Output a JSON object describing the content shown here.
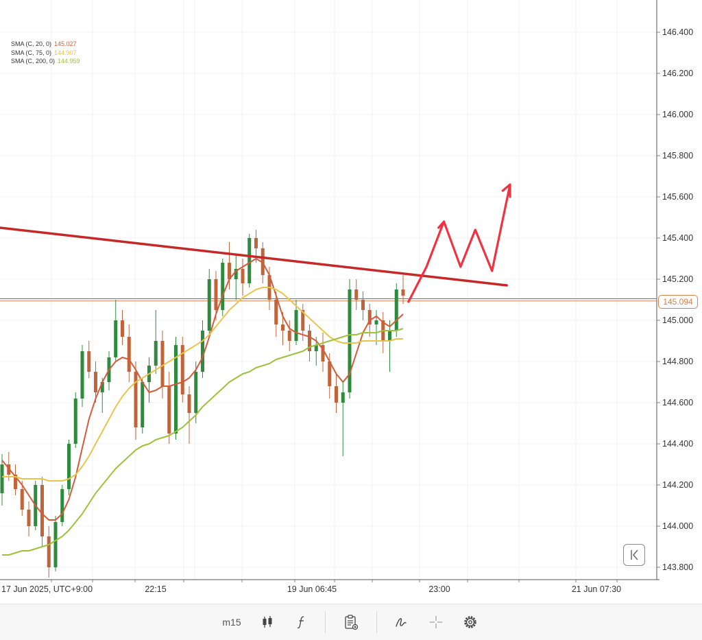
{
  "legend": [
    {
      "label": "SMA (C, 20, 0)",
      "value": "145.027",
      "color": "#d65a3a"
    },
    {
      "label": "SMA (C, 75, 0)",
      "value": "144.907",
      "color": "#e8c54a"
    },
    {
      "label": "SMA (C, 200, 0)",
      "value": "144.959",
      "color": "#9dc23a"
    }
  ],
  "current_price": "145.094",
  "toolbar": {
    "timeframe": "m15",
    "icons": [
      "candlestick-icon",
      "function-icon",
      "clipboard-icon",
      "draw-icon",
      "crosshair-icon",
      "gear-icon"
    ]
  },
  "chart_data": {
    "type": "candlestick",
    "y_axis": {
      "range": [
        143.74,
        146.55
      ],
      "ticks": [
        "143.800",
        "144.000",
        "144.200",
        "144.400",
        "144.600",
        "144.800",
        "145.000",
        "145.200",
        "145.400",
        "145.600",
        "145.800",
        "146.000",
        "146.200",
        "146.400"
      ]
    },
    "x_axis": {
      "tick_labels": [
        "17 Jun 2025, UTC+9:00",
        "22:15",
        "19 Jun 06:45",
        "23:00",
        "21 Jun 07:30"
      ]
    },
    "colors": {
      "up": "#2e8b3e",
      "down": "#c0643a",
      "trendline": "#c62828",
      "projection": "#ef3340",
      "hline_green": "#3c9a46",
      "hline_orange": "#d3804a"
    },
    "hlines": [
      145.105,
      145.094
    ],
    "candles": [
      [
        144.16,
        144.35,
        144.1,
        144.3
      ],
      [
        144.3,
        144.36,
        144.22,
        144.25
      ],
      [
        144.25,
        144.3,
        144.15,
        144.18
      ],
      [
        144.18,
        144.22,
        144.05,
        144.08
      ],
      [
        144.08,
        144.12,
        143.95,
        144.0
      ],
      [
        144.0,
        144.22,
        143.98,
        144.2
      ],
      [
        144.2,
        144.24,
        143.9,
        143.95
      ],
      [
        143.95,
        144.0,
        143.75,
        143.8
      ],
      [
        143.8,
        144.05,
        143.78,
        144.02
      ],
      [
        144.02,
        144.2,
        144.0,
        144.18
      ],
      [
        144.18,
        144.42,
        144.15,
        144.4
      ],
      [
        144.4,
        144.65,
        144.38,
        144.62
      ],
      [
        144.62,
        144.88,
        144.58,
        144.85
      ],
      [
        144.85,
        144.9,
        144.72,
        144.75
      ],
      [
        144.75,
        144.8,
        144.6,
        144.65
      ],
      [
        144.65,
        144.72,
        144.55,
        144.7
      ],
      [
        144.7,
        144.85,
        144.66,
        144.82
      ],
      [
        144.82,
        145.1,
        144.8,
        145.0
      ],
      [
        145.0,
        145.05,
        144.88,
        144.92
      ],
      [
        144.92,
        144.98,
        144.7,
        144.75
      ],
      [
        144.75,
        144.8,
        144.42,
        144.48
      ],
      [
        144.48,
        144.72,
        144.45,
        144.7
      ],
      [
        144.7,
        144.82,
        144.6,
        144.78
      ],
      [
        144.78,
        145.05,
        144.74,
        144.9
      ],
      [
        144.9,
        144.95,
        144.62,
        144.68
      ],
      [
        144.68,
        144.75,
        144.4,
        144.45
      ],
      [
        144.45,
        144.92,
        144.42,
        144.88
      ],
      [
        144.88,
        144.92,
        144.6,
        144.64
      ],
      [
        144.64,
        144.68,
        144.4,
        144.55
      ],
      [
        144.55,
        144.8,
        144.5,
        144.75
      ],
      [
        144.75,
        145.0,
        144.72,
        144.95
      ],
      [
        144.95,
        145.25,
        144.92,
        145.2
      ],
      [
        145.2,
        145.24,
        145.0,
        145.05
      ],
      [
        145.05,
        145.3,
        145.02,
        145.28
      ],
      [
        145.28,
        145.38,
        145.15,
        145.2
      ],
      [
        145.2,
        145.32,
        145.1,
        145.25
      ],
      [
        145.25,
        145.3,
        145.12,
        145.18
      ],
      [
        145.18,
        145.42,
        145.16,
        145.4
      ],
      [
        145.4,
        145.44,
        145.28,
        145.35
      ],
      [
        145.35,
        145.38,
        145.18,
        145.22
      ],
      [
        145.22,
        145.26,
        145.05,
        145.1
      ],
      [
        145.1,
        145.14,
        144.92,
        144.98
      ],
      [
        144.98,
        145.04,
        144.88,
        144.95
      ],
      [
        144.95,
        145.0,
        144.85,
        144.9
      ],
      [
        144.9,
        145.1,
        144.88,
        145.05
      ],
      [
        145.05,
        145.08,
        144.9,
        144.95
      ],
      [
        144.95,
        144.98,
        144.8,
        144.85
      ],
      [
        144.85,
        144.92,
        144.78,
        144.88
      ],
      [
        144.88,
        144.94,
        144.75,
        144.8
      ],
      [
        144.8,
        144.84,
        144.62,
        144.68
      ],
      [
        144.68,
        144.74,
        144.55,
        144.6
      ],
      [
        144.6,
        144.7,
        144.34,
        144.65
      ],
      [
        144.65,
        145.2,
        144.62,
        145.15
      ],
      [
        145.15,
        145.2,
        145.05,
        145.1
      ],
      [
        145.1,
        145.14,
        145.0,
        145.05
      ],
      [
        145.05,
        145.08,
        144.92,
        144.98
      ],
      [
        144.98,
        145.05,
        144.88,
        145.0
      ],
      [
        145.0,
        145.04,
        144.84,
        144.9
      ],
      [
        144.9,
        145.0,
        144.75,
        144.95
      ],
      [
        144.95,
        145.18,
        144.92,
        145.15
      ],
      [
        145.15,
        145.22,
        145.08,
        145.12
      ]
    ],
    "sma": [
      {
        "name": "SMA (C, 20, 0)",
        "values": [
          144.32,
          144.28,
          144.24,
          144.2,
          144.15,
          144.1,
          144.06,
          144.03,
          144.03,
          144.06,
          144.13,
          144.24,
          144.38,
          144.52,
          144.62,
          144.7,
          144.76,
          144.8,
          144.82,
          144.81,
          144.76,
          144.7,
          144.65,
          144.66,
          144.68,
          144.68,
          144.69,
          144.7,
          144.72,
          144.76,
          144.82,
          144.92,
          145.03,
          145.12,
          145.2,
          145.24,
          145.26,
          145.28,
          145.3,
          145.28,
          145.22,
          145.12,
          145.02,
          144.96,
          144.94,
          144.93,
          144.92,
          144.9,
          144.86,
          144.8,
          144.74,
          144.7,
          144.74,
          144.84,
          144.94,
          145.0,
          145.02,
          144.99,
          144.97,
          145.0,
          145.03
        ]
      },
      {
        "name": "SMA (C, 75, 0)",
        "values": [
          144.24,
          144.24,
          144.24,
          144.23,
          144.23,
          144.23,
          144.23,
          144.22,
          144.22,
          144.22,
          144.23,
          144.25,
          144.29,
          144.34,
          144.4,
          144.46,
          144.52,
          144.58,
          144.63,
          144.67,
          144.7,
          144.72,
          144.74,
          144.76,
          144.78,
          144.8,
          144.82,
          144.84,
          144.86,
          144.88,
          144.9,
          144.93,
          144.97,
          145.01,
          145.05,
          145.08,
          145.11,
          145.13,
          145.15,
          145.16,
          145.16,
          145.15,
          145.13,
          145.1,
          145.07,
          145.04,
          145.01,
          144.98,
          144.95,
          144.92,
          144.9,
          144.89,
          144.89,
          144.89,
          144.9,
          144.9,
          144.9,
          144.9,
          144.9,
          144.91,
          144.91
        ]
      },
      {
        "name": "SMA (C, 200, 0)",
        "values": [
          143.86,
          143.86,
          143.87,
          143.88,
          143.88,
          143.89,
          143.9,
          143.91,
          143.93,
          143.95,
          143.98,
          144.02,
          144.06,
          144.11,
          144.16,
          144.2,
          144.24,
          144.28,
          144.31,
          144.34,
          144.37,
          144.39,
          144.4,
          144.42,
          144.43,
          144.44,
          144.46,
          144.48,
          144.51,
          144.54,
          144.58,
          144.61,
          144.64,
          144.67,
          144.7,
          144.72,
          144.74,
          144.75,
          144.77,
          144.78,
          144.79,
          144.81,
          144.82,
          144.83,
          144.84,
          144.85,
          144.87,
          144.88,
          144.89,
          144.9,
          144.91,
          144.92,
          144.93,
          144.93,
          144.94,
          144.94,
          144.94,
          144.95,
          144.95,
          144.95,
          144.96
        ]
      }
    ],
    "trendline": [
      [
        -0.3,
        145.45
      ],
      [
        75.5,
        145.17
      ]
    ],
    "projection": [
      [
        60.8,
        145.09
      ],
      [
        63.5,
        145.26
      ],
      [
        66.1,
        145.48
      ],
      [
        65.3,
        145.45
      ],
      [
        66.1,
        145.48
      ],
      [
        68.6,
        145.26
      ],
      [
        70.8,
        145.44
      ],
      [
        73.3,
        145.24
      ],
      [
        76.0,
        145.66
      ],
      [
        76.0,
        145.6
      ],
      [
        76.0,
        145.66
      ],
      [
        74.9,
        145.63
      ]
    ]
  }
}
